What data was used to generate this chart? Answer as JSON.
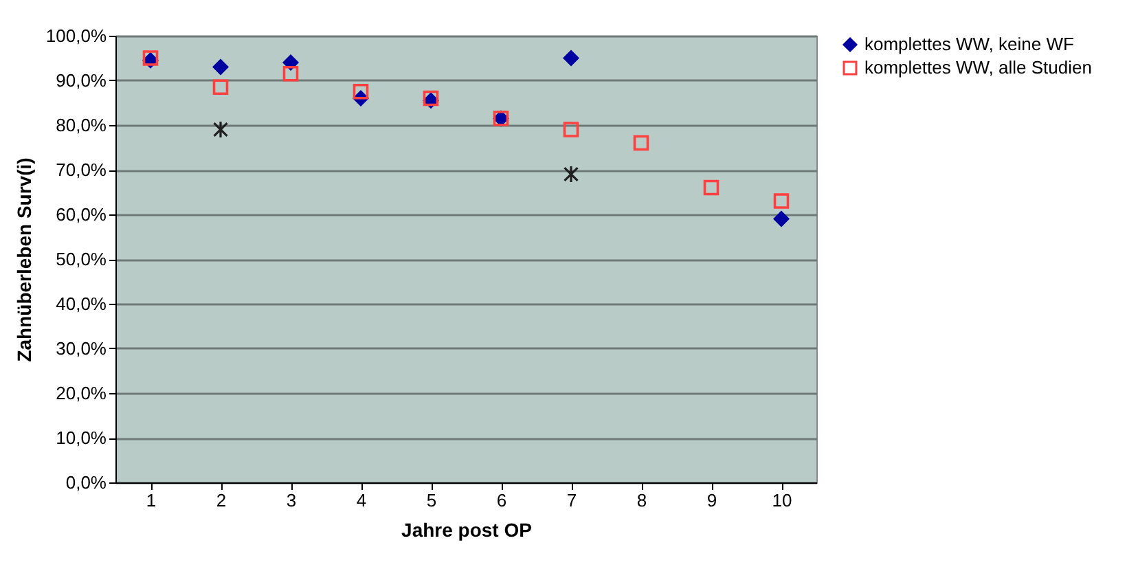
{
  "chart_data": {
    "type": "scatter",
    "xlabel": "Jahre post OP",
    "ylabel": "Zahnüberleben Surv(i)",
    "categories": [
      "1",
      "2",
      "3",
      "4",
      "5",
      "6",
      "7",
      "8",
      "9",
      "10"
    ],
    "series": [
      {
        "name": "komplettes WW, keine WF",
        "color": "#0000a0",
        "marker": "diamond",
        "values": [
          94.5,
          93,
          94,
          86,
          85.5,
          81.5,
          95,
          null,
          null,
          59
        ]
      },
      {
        "name": "komplettes WW, alle Studien",
        "color": "#ff4040",
        "marker": "square",
        "values": [
          95,
          88.5,
          91.5,
          87.5,
          86,
          81.5,
          79,
          76,
          66,
          63
        ]
      },
      {
        "color": "#202020",
        "marker": "cross",
        "values": [
          null,
          79,
          null,
          null,
          null,
          null,
          69,
          null,
          null,
          null
        ]
      }
    ],
    "ylim": [
      0,
      100
    ],
    "yticks": [
      {
        "value": 0,
        "label": "0,0%"
      },
      {
        "value": 10,
        "label": "10,0%"
      },
      {
        "value": 20,
        "label": "20,0%"
      },
      {
        "value": 30,
        "label": "30,0%"
      },
      {
        "value": 40,
        "label": "40,0%"
      },
      {
        "value": 50,
        "label": "50,0%"
      },
      {
        "value": 60,
        "label": "60,0%"
      },
      {
        "value": 70,
        "label": "70,0%"
      },
      {
        "value": 80,
        "label": "80,0%"
      },
      {
        "value": 90,
        "label": "90,0%"
      },
      {
        "value": 100,
        "label": "100,0%"
      }
    ],
    "grid": "y",
    "legend": "right"
  }
}
